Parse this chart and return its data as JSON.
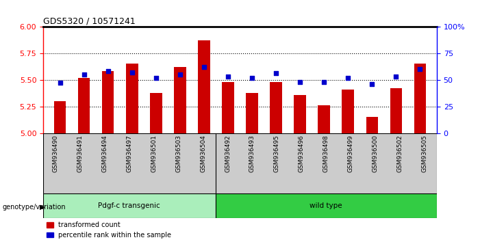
{
  "title": "GDS5320 / 10571241",
  "samples": [
    "GSM936490",
    "GSM936491",
    "GSM936494",
    "GSM936497",
    "GSM936501",
    "GSM936503",
    "GSM936504",
    "GSM936492",
    "GSM936493",
    "GSM936495",
    "GSM936496",
    "GSM936498",
    "GSM936499",
    "GSM936500",
    "GSM936502",
    "GSM936505"
  ],
  "red_values": [
    5.3,
    5.52,
    5.58,
    5.65,
    5.38,
    5.62,
    5.87,
    5.48,
    5.38,
    5.48,
    5.36,
    5.26,
    5.41,
    5.15,
    5.42,
    5.65
  ],
  "blue_values": [
    47,
    55,
    58,
    57,
    52,
    55,
    62,
    53,
    52,
    56,
    48,
    48,
    52,
    46,
    53,
    60
  ],
  "ymin": 5.0,
  "ymax": 6.0,
  "y2min": 0,
  "y2max": 100,
  "yticks": [
    5.0,
    5.25,
    5.5,
    5.75,
    6.0
  ],
  "y2ticks": [
    0,
    25,
    50,
    75,
    100
  ],
  "group1_label": "Pdgf-c transgenic",
  "group2_label": "wild type",
  "group1_count": 7,
  "group2_count": 9,
  "genotype_label": "genotype/variation",
  "legend_red": "transformed count",
  "legend_blue": "percentile rank within the sample",
  "bar_color": "#cc0000",
  "dot_color": "#0000cc",
  "group1_bg": "#aaeebb",
  "group2_bg": "#33cc44",
  "bar_baseline": 5.0,
  "bar_width": 0.5,
  "background_color": "#ffffff",
  "tick_area_color": "#cccccc"
}
